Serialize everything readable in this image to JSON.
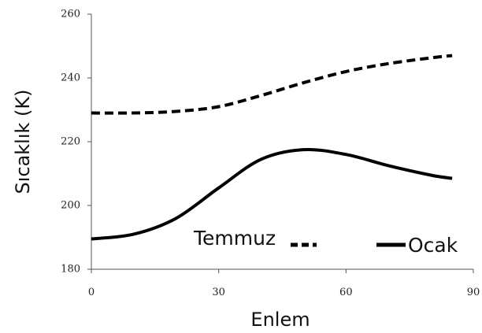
{
  "chart_data": {
    "type": "line",
    "title": "",
    "xlabel": "Enlem",
    "ylabel": "Sıcaklık (K)",
    "xlim": [
      0,
      90
    ],
    "ylim": [
      180,
      260
    ],
    "x_ticks": [
      0,
      30,
      60,
      90
    ],
    "y_ticks": [
      180,
      200,
      220,
      240,
      260
    ],
    "x_tick_labels": [
      "0",
      "30",
      "60",
      "90"
    ],
    "y_tick_labels": [
      "180",
      "200",
      "220",
      "240",
      "260"
    ],
    "grid": false,
    "legend_position": "bottom-right, inside plot",
    "series": [
      {
        "name": "Temmuz",
        "style": "dashed",
        "color": "#000000",
        "x": [
          0,
          10,
          20,
          30,
          40,
          50,
          60,
          70,
          80,
          85
        ],
        "y": [
          229,
          229,
          229.5,
          231,
          234.5,
          238.5,
          242,
          244.5,
          246.3,
          247
        ]
      },
      {
        "name": "Ocak",
        "style": "solid",
        "color": "#000000",
        "x": [
          0,
          10,
          20,
          30,
          40,
          50,
          60,
          70,
          80,
          85
        ],
        "y": [
          189.5,
          191,
          196,
          205.5,
          214.5,
          217.5,
          216,
          212.5,
          209.5,
          208.5
        ]
      }
    ]
  }
}
